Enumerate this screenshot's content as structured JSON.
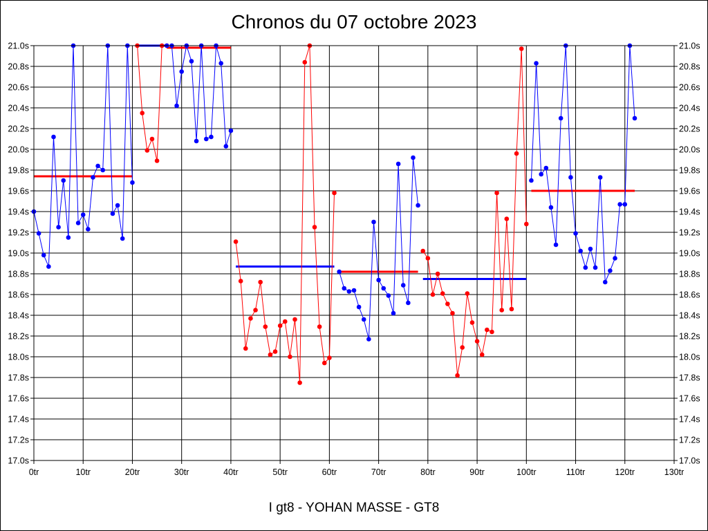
{
  "chart_data": {
    "type": "line",
    "title": "Chronos du 07 octobre 2023",
    "subtitle": "I gt8 - YOHAN MASSE - GT8",
    "ylim": [
      17.0,
      21.0
    ],
    "xlim": [
      0,
      130
    ],
    "y_ticks": [
      "17.0s",
      "17.2s",
      "17.4s",
      "17.6s",
      "17.8s",
      "18.0s",
      "18.2s",
      "18.4s",
      "18.6s",
      "18.8s",
      "19.0s",
      "19.2s",
      "19.4s",
      "19.6s",
      "19.8s",
      "20.0s",
      "20.2s",
      "20.4s",
      "20.6s",
      "20.8s",
      "21.0s"
    ],
    "x_ticks": [
      "0tr",
      "10tr",
      "20tr",
      "30tr",
      "40tr",
      "50tr",
      "60tr",
      "70tr",
      "80tr",
      "90tr",
      "100tr",
      "110tr",
      "120tr",
      "130tr"
    ],
    "grid": true,
    "colors": {
      "blue": "#0000ff",
      "red": "#ff0000"
    },
    "series": [
      {
        "color": "#0000ff",
        "x": [
          0,
          1,
          2,
          3,
          4,
          5,
          6,
          7,
          8,
          9,
          10,
          11,
          12,
          13,
          14,
          15,
          16,
          17,
          18,
          19,
          20
        ],
        "y": [
          19.4,
          19.19,
          18.98,
          18.87,
          20.12,
          19.25,
          19.7,
          19.15,
          21.0,
          19.29,
          19.37,
          19.23,
          19.73,
          19.84,
          19.8,
          21.0,
          19.38,
          19.46,
          19.14,
          21.0,
          19.68
        ]
      },
      {
        "color": "#ff0000",
        "x": [
          21,
          22,
          23,
          24,
          25,
          26,
          27
        ],
        "y": [
          21.0,
          20.35,
          19.99,
          20.1,
          19.89,
          21.0,
          21.0
        ]
      },
      {
        "color": "#0000ff",
        "x": [
          27,
          28,
          29,
          30,
          31,
          32,
          33,
          34,
          35,
          36,
          37,
          38,
          39,
          40
        ],
        "y": [
          21.0,
          21.0,
          20.42,
          20.75,
          21.0,
          20.85,
          20.08,
          21.0,
          20.1,
          20.12,
          21.0,
          20.83,
          20.03,
          20.18
        ]
      },
      {
        "color": "#ff0000",
        "x": [
          41,
          42,
          43,
          44,
          45,
          46,
          47,
          48,
          49,
          50,
          51,
          52,
          53,
          54,
          55,
          56,
          57,
          58,
          59,
          60,
          61
        ],
        "y": [
          19.11,
          18.73,
          18.08,
          18.37,
          18.45,
          18.72,
          18.29,
          18.02,
          18.05,
          18.3,
          18.34,
          18.0,
          18.36,
          17.75,
          20.84,
          21.0,
          19.25,
          18.29,
          17.94,
          17.99,
          19.58
        ]
      },
      {
        "color": "#0000ff",
        "x": [
          62,
          63,
          64,
          65,
          66,
          67,
          68,
          69,
          70,
          71,
          72,
          73,
          74,
          75,
          76,
          77,
          78
        ],
        "y": [
          18.82,
          18.66,
          18.63,
          18.64,
          18.48,
          18.36,
          18.17,
          19.3,
          18.74,
          18.66,
          18.59,
          18.42,
          19.86,
          18.69,
          18.52,
          19.92,
          19.46
        ]
      },
      {
        "color": "#ff0000",
        "x": [
          79,
          80,
          81,
          82,
          83,
          84,
          85,
          86,
          87,
          88,
          89,
          90,
          91,
          92,
          93,
          94,
          95,
          96,
          97,
          98,
          99,
          100
        ],
        "y": [
          19.02,
          18.95,
          18.6,
          18.8,
          18.61,
          18.51,
          18.42,
          17.82,
          18.09,
          18.61,
          18.33,
          18.15,
          18.02,
          18.26,
          18.24,
          19.58,
          18.45,
          19.33,
          18.46,
          19.96,
          20.97,
          19.28
        ]
      },
      {
        "color": "#0000ff",
        "x": [
          101,
          102,
          103,
          104,
          105,
          106,
          107,
          108,
          109,
          110,
          111,
          112,
          113,
          114,
          115,
          116,
          117,
          118,
          119,
          120,
          121,
          122
        ],
        "y": [
          19.7,
          20.83,
          19.76,
          19.82,
          19.44,
          19.08,
          20.3,
          21.0,
          19.73,
          19.19,
          19.02,
          18.86,
          19.04,
          18.86,
          19.73,
          18.72,
          18.83,
          18.95,
          19.47,
          19.47,
          21.0,
          20.3
        ]
      }
    ],
    "average_lines": [
      {
        "color": "#ff0000",
        "x": [
          0,
          20
        ],
        "y": 19.74
      },
      {
        "color": "#0000ff",
        "x": [
          21,
          27
        ],
        "y": 21.0
      },
      {
        "color": "#ff0000",
        "x": [
          27,
          40
        ],
        "y": 20.98
      },
      {
        "color": "#0000ff",
        "x": [
          41,
          61
        ],
        "y": 18.87
      },
      {
        "color": "#ff0000",
        "x": [
          62,
          78
        ],
        "y": 18.82
      },
      {
        "color": "#0000ff",
        "x": [
          79,
          100
        ],
        "y": 18.75
      },
      {
        "color": "#ff0000",
        "x": [
          101,
          122
        ],
        "y": 19.6
      }
    ]
  }
}
